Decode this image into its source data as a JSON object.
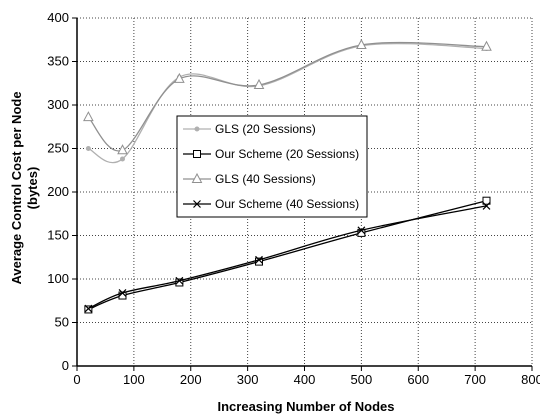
{
  "chart_data": {
    "type": "line",
    "title": "",
    "xlabel": "Increasing Number of Nodes",
    "ylabel_line1": "Average Control Cost per Node",
    "ylabel_line2": "(bytes)",
    "xlim": [
      0,
      800
    ],
    "ylim": [
      0,
      400
    ],
    "x_ticks": [
      0,
      100,
      200,
      300,
      400,
      500,
      600,
      700,
      800
    ],
    "y_ticks": [
      0,
      50,
      100,
      150,
      200,
      250,
      300,
      350,
      400
    ],
    "x_tick_labels": [
      "0",
      "100",
      "200",
      "300",
      "400",
      "500",
      "600",
      "700",
      "800"
    ],
    "y_tick_labels": [
      "0",
      "50",
      "100",
      "150",
      "200",
      "250",
      "300",
      "350",
      "400"
    ],
    "grid": true,
    "legend_position": "center-left",
    "series": [
      {
        "name": "GLS (20 Sessions)",
        "marker": "dot",
        "color": "#b0b0b0",
        "x": [
          20,
          80,
          180,
          320,
          500,
          720
        ],
        "y": [
          250,
          238,
          332,
          322,
          368,
          365
        ]
      },
      {
        "name": "Our Scheme (20 Sessions)",
        "marker": "square",
        "color": "#000000",
        "x": [
          20,
          80,
          180,
          320,
          500,
          720
        ],
        "y": [
          65,
          81,
          96,
          120,
          153,
          190
        ]
      },
      {
        "name": "GLS (40 Sessions)",
        "marker": "triangle",
        "color": "#909090",
        "x": [
          20,
          80,
          180,
          320,
          500,
          720
        ],
        "y": [
          286,
          248,
          330,
          323,
          369,
          367
        ]
      },
      {
        "name": "Our Scheme (40 Sessions)",
        "marker": "x",
        "color": "#000000",
        "x": [
          20,
          80,
          180,
          320,
          500,
          720
        ],
        "y": [
          66,
          84,
          98,
          122,
          156,
          184
        ]
      }
    ]
  }
}
